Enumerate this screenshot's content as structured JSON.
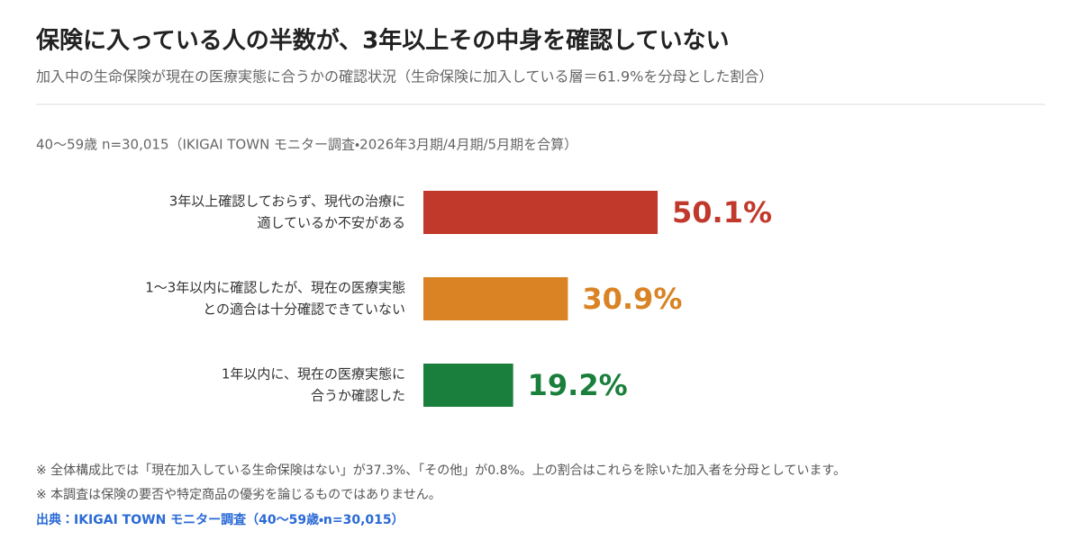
{
  "chart_data": {
    "type": "bar",
    "orientation": "horizontal",
    "title": "保険に入っている人の半数が、3年以上その中身を確認していない",
    "subtitle": "加入中の生命保険が現在の医療実態に合うかの確認状況（生命保険に加入している層＝61.9%を分母とした割合）",
    "sample_note": "40〜59歳 n=30,015（IKIGAI TOWN モニター調査・2026年3月期/4月期/5月期を合算）",
    "categories": [
      [
        "3年以上確認しておらず、現代の治療に",
        "適しているか不安がある"
      ],
      [
        "1〜3年以内に確認したが、現在の医療実態",
        "との適合は十分確認できていない"
      ],
      [
        "1年以内に、現在の医療実態に",
        "合うか確認した"
      ]
    ],
    "values": [
      50.1,
      30.9,
      19.2
    ],
    "value_labels": [
      "50.1%",
      "30.9%",
      "19.2%"
    ],
    "colors": [
      "#c0392b",
      "#d98324",
      "#1a7f3c"
    ],
    "footnotes": [
      "※ 全体構成比では「現在加入している生命保険はない」が37.3%、「その他」が0.8%。上の割合はこれらを除いた加入者を分母としています。",
      "※ 本調査は保険の要否や特定商品の優劣を論じるものではありません。"
    ],
    "source": "出典：IKIGAI TOWN モニター調査（40〜59歳・n=30,015）"
  }
}
